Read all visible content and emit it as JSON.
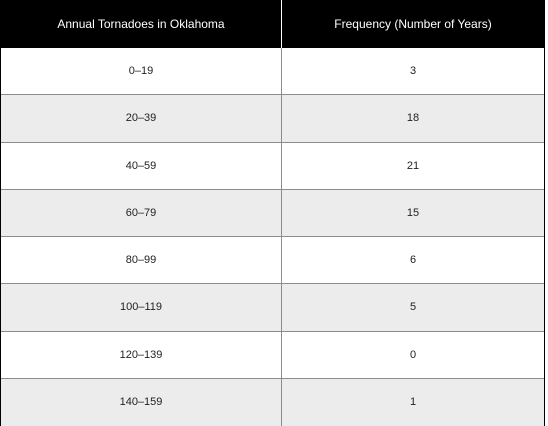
{
  "chart_data": {
    "type": "table",
    "columns": [
      "Annual Tornadoes in Oklahoma",
      "Frequency (Number of Years)"
    ],
    "rows": [
      [
        "0–19",
        "3"
      ],
      [
        "20–39",
        "18"
      ],
      [
        "40–59",
        "21"
      ],
      [
        "60–79",
        "15"
      ],
      [
        "80–99",
        "6"
      ],
      [
        "100–119",
        "5"
      ],
      [
        "120–139",
        "0"
      ],
      [
        "140–159",
        "1"
      ]
    ],
    "colors": {
      "header_bg": "#000000",
      "header_text": "#ffffff",
      "alt_row_bg": "#ececec",
      "row_bg": "#ffffff",
      "rule": "#8c8c8c"
    }
  }
}
